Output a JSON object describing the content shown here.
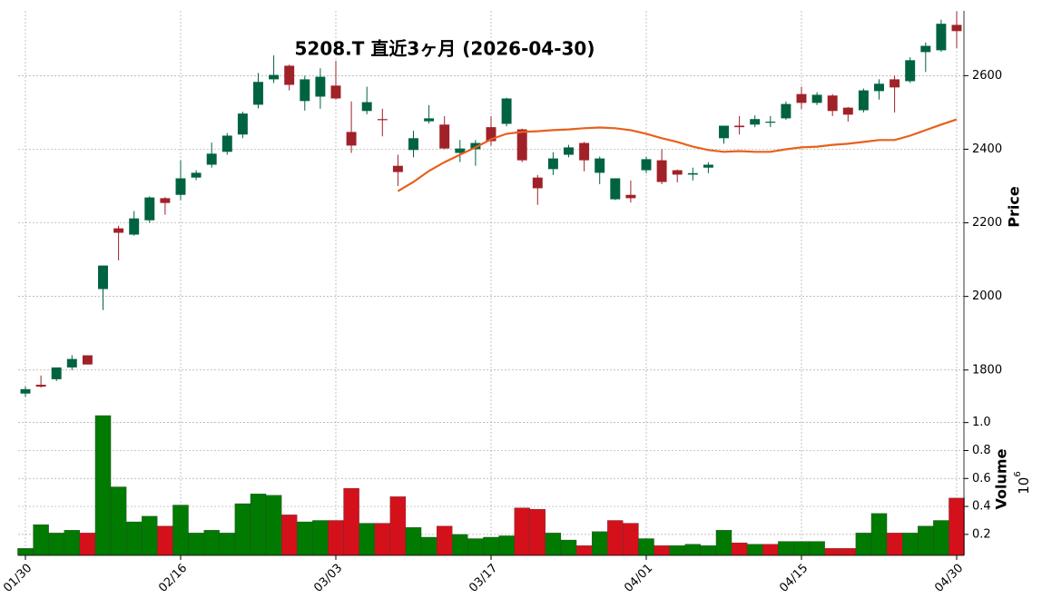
{
  "chart_data": {
    "type": "candlestick",
    "title": "5208.T  直近3ヶ月  (2026-04-30)",
    "categories": [
      "01/30",
      null,
      null,
      null,
      null,
      null,
      null,
      null,
      null,
      null,
      "02/16",
      null,
      null,
      null,
      null,
      null,
      null,
      null,
      null,
      null,
      "03/03",
      null,
      null,
      null,
      null,
      null,
      null,
      null,
      null,
      null,
      "03/17",
      null,
      null,
      null,
      null,
      null,
      null,
      null,
      null,
      null,
      "04/01",
      null,
      null,
      null,
      null,
      null,
      null,
      null,
      null,
      null,
      "04/15",
      null,
      null,
      null,
      null,
      null,
      null,
      null,
      null,
      null,
      "04/30"
    ],
    "open": [
      1736,
      1760,
      1775,
      1807,
      1840,
      2020,
      2185,
      2168,
      2207,
      2267,
      2276,
      2323,
      2358,
      2393,
      2440,
      2521,
      2590,
      2627,
      2531,
      2543,
      2573,
      2447,
      2504,
      2482,
      2355,
      2398,
      2476,
      2467,
      2390,
      2400,
      2460,
      2469,
      2454,
      2323,
      2346,
      2385,
      2417,
      2336,
      2264,
      2276,
      2343,
      2370,
      2343,
      2331,
      2350,
      2430,
      2464,
      2467,
      2472,
      2484,
      2550,
      2526,
      2546,
      2513,
      2506,
      2558,
      2590,
      2585,
      2664,
      2669,
      2738
    ],
    "high": [
      1755,
      1785,
      1807,
      1840,
      1840,
      2084,
      2192,
      2232,
      2272,
      2270,
      2370,
      2343,
      2418,
      2444,
      2502,
      2607,
      2655,
      2630,
      2600,
      2620,
      2640,
      2530,
      2570,
      2510,
      2385,
      2450,
      2520,
      2490,
      2425,
      2425,
      2490,
      2540,
      2456,
      2330,
      2392,
      2412,
      2420,
      2380,
      2321,
      2315,
      2380,
      2400,
      2345,
      2350,
      2365,
      2464,
      2490,
      2492,
      2490,
      2530,
      2570,
      2555,
      2550,
      2515,
      2565,
      2590,
      2600,
      2650,
      2690,
      2752,
      2775
    ],
    "low": [
      1727,
      1752,
      1770,
      1800,
      1815,
      1963,
      2098,
      2165,
      2200,
      2222,
      2262,
      2316,
      2350,
      2385,
      2430,
      2511,
      2580,
      2560,
      2505,
      2510,
      2535,
      2390,
      2495,
      2435,
      2300,
      2378,
      2470,
      2400,
      2365,
      2355,
      2410,
      2462,
      2365,
      2249,
      2330,
      2378,
      2340,
      2305,
      2262,
      2255,
      2335,
      2305,
      2310,
      2315,
      2335,
      2415,
      2440,
      2460,
      2460,
      2480,
      2510,
      2520,
      2490,
      2475,
      2500,
      2535,
      2500,
      2580,
      2610,
      2665,
      2675
    ],
    "close": [
      1748,
      1755,
      1807,
      1830,
      1815,
      2084,
      2173,
      2212,
      2269,
      2254,
      2321,
      2336,
      2388,
      2437,
      2497,
      2583,
      2602,
      2575,
      2590,
      2597,
      2538,
      2410,
      2528,
      2479,
      2338,
      2430,
      2484,
      2402,
      2402,
      2417,
      2422,
      2538,
      2370,
      2294,
      2375,
      2405,
      2370,
      2375,
      2321,
      2267,
      2373,
      2311,
      2331,
      2335,
      2358,
      2464,
      2460,
      2482,
      2475,
      2523,
      2526,
      2548,
      2504,
      2494,
      2560,
      2578,
      2568,
      2642,
      2681,
      2741,
      2721
    ],
    "up_color": "#006340",
    "down_color": "#a02128",
    "series": [
      {
        "color": "#e8601c",
        "values": [
          null,
          null,
          null,
          null,
          null,
          null,
          null,
          null,
          null,
          null,
          null,
          null,
          null,
          null,
          null,
          null,
          null,
          null,
          null,
          null,
          null,
          null,
          null,
          null,
          2286,
          2311,
          2341,
          2365,
          2385,
          2405,
          2427,
          2442,
          2447,
          2449,
          2452,
          2454,
          2457,
          2459,
          2457,
          2452,
          2442,
          2430,
          2420,
          2407,
          2398,
          2393,
          2395,
          2393,
          2393,
          2400,
          2405,
          2407,
          2412,
          2415,
          2420,
          2425,
          2425,
          2437,
          2452,
          2467,
          2481
        ]
      }
    ],
    "ylabel": "Price",
    "ylim": [
      1718,
      2776
    ],
    "yticks": [
      1800,
      2000,
      2200,
      2400,
      2600
    ],
    "volume": {
      "label": "Volume",
      "scale_base": "10",
      "scale_exponent": "6",
      "up_color": "#007a00",
      "down_color": "#d4111b",
      "values": [
        0.1,
        0.27,
        0.21,
        0.23,
        0.21,
        1.05,
        0.54,
        0.29,
        0.33,
        0.26,
        0.41,
        0.21,
        0.23,
        0.21,
        0.42,
        0.49,
        0.48,
        0.34,
        0.29,
        0.3,
        0.3,
        0.53,
        0.28,
        0.28,
        0.47,
        0.25,
        0.18,
        0.26,
        0.2,
        0.17,
        0.18,
        0.19,
        0.39,
        0.38,
        0.21,
        0.16,
        0.12,
        0.22,
        0.3,
        0.28,
        0.17,
        0.12,
        0.12,
        0.13,
        0.12,
        0.23,
        0.14,
        0.13,
        0.13,
        0.15,
        0.15,
        0.15,
        0.1,
        0.1,
        0.21,
        0.35,
        0.21,
        0.21,
        0.26,
        0.3,
        0.46
      ],
      "ylim": [
        0.05,
        1.16
      ],
      "yticks": [
        0.2,
        0.4,
        0.6,
        0.8,
        {
          "value": 1,
          "label": "1.0"
        }
      ]
    },
    "grid": true
  }
}
